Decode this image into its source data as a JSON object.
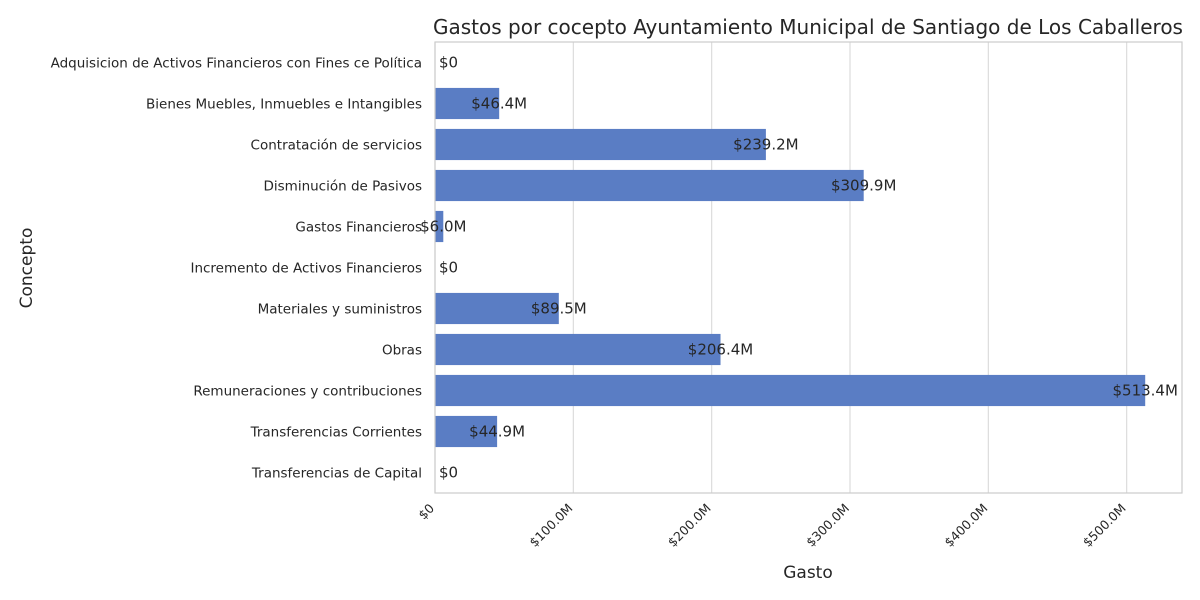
{
  "chart_data": {
    "type": "bar",
    "orientation": "horizontal",
    "title": "Gastos por cocepto Ayuntamiento Municipal de Santiago de Los Caballeros",
    "xlabel": "Gasto",
    "ylabel": "Concepto",
    "categories": [
      "Adquisicion de Activos Financieros con Fines ce Política",
      "Bienes Muebles, Inmuebles e Intangibles",
      "Contratación de servicios",
      "Disminución de Pasivos",
      "Gastos Financieros",
      "Incremento de Activos Financieros",
      "Materiales y suministros",
      "Obras",
      "Remuneraciones y contribuciones",
      "Transferencias Corrientes",
      "Transferencias de Capital"
    ],
    "values": [
      0,
      46.4,
      239.2,
      309.9,
      6.0,
      0,
      89.5,
      206.4,
      513.4,
      44.9,
      0
    ],
    "value_unit": "millions",
    "data_labels": [
      "$0",
      "$46.4M",
      "$239.2M",
      "$309.9M",
      "$6.0M",
      "$0",
      "$89.5M",
      "$206.4M",
      "$513.4M",
      "$44.9M",
      "$0"
    ],
    "xticks": [
      0,
      100,
      200,
      300,
      400,
      500
    ],
    "xtick_labels": [
      "$0",
      "$100.0M",
      "$200.0M",
      "$300.0M",
      "$400.0M",
      "$500.0M"
    ],
    "xlim": [
      0,
      540
    ],
    "grid": "vertical",
    "bar_color": "#5a7dc4"
  }
}
